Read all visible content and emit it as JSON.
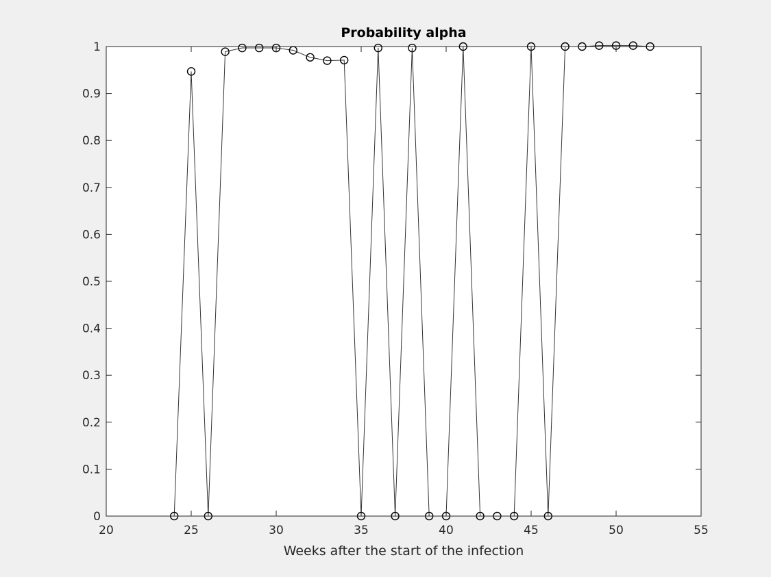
{
  "chart_data": {
    "type": "line",
    "title": "Probability alpha",
    "xlabel": "Weeks after the start of the infection",
    "ylabel": "",
    "xlim": [
      20,
      55
    ],
    "ylim": [
      0,
      1
    ],
    "xticks": [
      20,
      25,
      30,
      35,
      40,
      45,
      50,
      55
    ],
    "yticks": [
      0,
      0.1,
      0.2,
      0.3,
      0.4,
      0.5,
      0.6,
      0.7,
      0.8,
      0.9,
      1
    ],
    "xtick_labels": [
      "20",
      "25",
      "30",
      "35",
      "40",
      "45",
      "50",
      "55"
    ],
    "ytick_labels": [
      "0",
      "0.1",
      "0.2",
      "0.3",
      "0.4",
      "0.5",
      "0.6",
      "0.7",
      "0.8",
      "0.9",
      "1"
    ],
    "grid": false,
    "legend": "none",
    "marker": "circle",
    "colors": {
      "figure_bg": "#f0f0f0",
      "axes_bg": "#ffffff",
      "line": "#333333",
      "marker": "#000000",
      "text": "#262626"
    },
    "series": [
      {
        "x": [
          24,
          25,
          26,
          27,
          28,
          29,
          30,
          31,
          32,
          33,
          34,
          35,
          36,
          37,
          38,
          39,
          40,
          41,
          42,
          43,
          44,
          45,
          46,
          47,
          48,
          49,
          50,
          51,
          52
        ],
        "y": [
          0,
          0.947,
          0,
          0.989,
          0.997,
          0.997,
          0.997,
          0.992,
          0.977,
          0.97,
          0.971,
          0,
          0.997,
          0,
          0.997,
          0,
          0,
          1.0,
          0,
          0,
          0,
          1.0,
          0,
          1.0,
          1.0,
          1.002,
          1.002,
          1.002,
          1.0
        ]
      }
    ]
  }
}
